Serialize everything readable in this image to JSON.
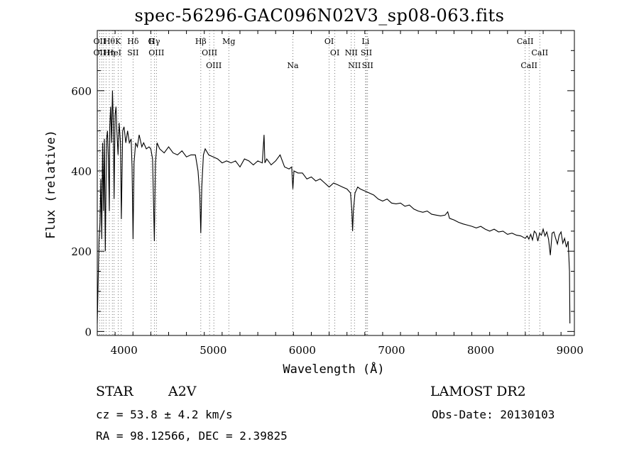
{
  "chart_data": {
    "type": "line",
    "title": "spec-56296-GAC096N02V3_sp08-063.fits",
    "xlabel": "Wavelength (Å)",
    "ylabel": "Flux (relative)",
    "xlim": [
      3700,
      9050
    ],
    "ylim": [
      -10,
      750
    ],
    "x_ticks": [
      4000,
      5000,
      6000,
      7000,
      8000,
      9000
    ],
    "y_ticks": [
      0,
      200,
      400,
      600
    ],
    "grid": false,
    "series": [
      {
        "name": "",
        "points": [
          [
            3700,
            20
          ],
          [
            3710,
            130
          ],
          [
            3720,
            230
          ],
          [
            3730,
            270
          ],
          [
            3740,
            380
          ],
          [
            3750,
            230
          ],
          [
            3760,
            470
          ],
          [
            3770,
            300
          ],
          [
            3780,
            480
          ],
          [
            3790,
            200
          ],
          [
            3798,
            360
          ],
          [
            3805,
            480
          ],
          [
            3815,
            500
          ],
          [
            3825,
            430
          ],
          [
            3835,
            300
          ],
          [
            3840,
            510
          ],
          [
            3850,
            560
          ],
          [
            3860,
            470
          ],
          [
            3870,
            600
          ],
          [
            3880,
            520
          ],
          [
            3889,
            330
          ],
          [
            3900,
            540
          ],
          [
            3910,
            560
          ],
          [
            3920,
            500
          ],
          [
            3933,
            440
          ],
          [
            3945,
            520
          ],
          [
            3960,
            470
          ],
          [
            3970,
            280
          ],
          [
            3985,
            500
          ],
          [
            4000,
            510
          ],
          [
            4020,
            470
          ],
          [
            4040,
            500
          ],
          [
            4060,
            470
          ],
          [
            4080,
            480
          ],
          [
            4090,
            410
          ],
          [
            4101,
            230
          ],
          [
            4112,
            420
          ],
          [
            4130,
            470
          ],
          [
            4150,
            460
          ],
          [
            4170,
            490
          ],
          [
            4200,
            460
          ],
          [
            4220,
            470
          ],
          [
            4250,
            455
          ],
          [
            4280,
            460
          ],
          [
            4300,
            455
          ],
          [
            4320,
            430
          ],
          [
            4340,
            225
          ],
          [
            4352,
            420
          ],
          [
            4370,
            470
          ],
          [
            4400,
            455
          ],
          [
            4450,
            445
          ],
          [
            4500,
            460
          ],
          [
            4550,
            445
          ],
          [
            4600,
            440
          ],
          [
            4650,
            450
          ],
          [
            4700,
            435
          ],
          [
            4750,
            440
          ],
          [
            4800,
            440
          ],
          [
            4830,
            400
          ],
          [
            4850,
            340
          ],
          [
            4861,
            245
          ],
          [
            4872,
            360
          ],
          [
            4890,
            440
          ],
          [
            4910,
            455
          ],
          [
            4950,
            440
          ],
          [
            5000,
            435
          ],
          [
            5050,
            430
          ],
          [
            5100,
            420
          ],
          [
            5150,
            425
          ],
          [
            5200,
            420
          ],
          [
            5250,
            425
          ],
          [
            5300,
            410
          ],
          [
            5350,
            430
          ],
          [
            5400,
            425
          ],
          [
            5450,
            415
          ],
          [
            5500,
            425
          ],
          [
            5550,
            420
          ],
          [
            5570,
            490
          ],
          [
            5580,
            420
          ],
          [
            5600,
            430
          ],
          [
            5650,
            415
          ],
          [
            5700,
            425
          ],
          [
            5750,
            440
          ],
          [
            5800,
            410
          ],
          [
            5850,
            405
          ],
          [
            5880,
            410
          ],
          [
            5893,
            355
          ],
          [
            5905,
            400
          ],
          [
            5950,
            395
          ],
          [
            6000,
            395
          ],
          [
            6050,
            380
          ],
          [
            6100,
            385
          ],
          [
            6150,
            375
          ],
          [
            6200,
            380
          ],
          [
            6250,
            370
          ],
          [
            6300,
            360
          ],
          [
            6350,
            370
          ],
          [
            6400,
            365
          ],
          [
            6450,
            360
          ],
          [
            6500,
            355
          ],
          [
            6540,
            345
          ],
          [
            6555,
            300
          ],
          [
            6563,
            250
          ],
          [
            6572,
            300
          ],
          [
            6590,
            345
          ],
          [
            6620,
            360
          ],
          [
            6650,
            355
          ],
          [
            6700,
            350
          ],
          [
            6750,
            345
          ],
          [
            6800,
            340
          ],
          [
            6850,
            330
          ],
          [
            6900,
            325
          ],
          [
            6950,
            330
          ],
          [
            7000,
            320
          ],
          [
            7050,
            318
          ],
          [
            7100,
            320
          ],
          [
            7150,
            312
          ],
          [
            7200,
            315
          ],
          [
            7250,
            305
          ],
          [
            7300,
            300
          ],
          [
            7350,
            297
          ],
          [
            7400,
            300
          ],
          [
            7450,
            292
          ],
          [
            7500,
            290
          ],
          [
            7550,
            288
          ],
          [
            7600,
            290
          ],
          [
            7630,
            298
          ],
          [
            7650,
            282
          ],
          [
            7700,
            278
          ],
          [
            7750,
            272
          ],
          [
            7800,
            268
          ],
          [
            7850,
            265
          ],
          [
            7900,
            262
          ],
          [
            7950,
            258
          ],
          [
            8000,
            262
          ],
          [
            8050,
            255
          ],
          [
            8100,
            250
          ],
          [
            8150,
            255
          ],
          [
            8200,
            248
          ],
          [
            8250,
            250
          ],
          [
            8300,
            242
          ],
          [
            8350,
            245
          ],
          [
            8400,
            240
          ],
          [
            8450,
            238
          ],
          [
            8500,
            232
          ],
          [
            8520,
            238
          ],
          [
            8540,
            230
          ],
          [
            8560,
            242
          ],
          [
            8580,
            228
          ],
          [
            8600,
            250
          ],
          [
            8620,
            245
          ],
          [
            8640,
            225
          ],
          [
            8660,
            245
          ],
          [
            8680,
            240
          ],
          [
            8700,
            255
          ],
          [
            8720,
            238
          ],
          [
            8740,
            248
          ],
          [
            8760,
            230
          ],
          [
            8780,
            190
          ],
          [
            8800,
            245
          ],
          [
            8820,
            248
          ],
          [
            8840,
            232
          ],
          [
            8860,
            218
          ],
          [
            8880,
            240
          ],
          [
            8900,
            248
          ],
          [
            8920,
            220
          ],
          [
            8940,
            232
          ],
          [
            8960,
            210
          ],
          [
            8980,
            225
          ],
          [
            8995,
            150
          ],
          [
            9000,
            20
          ]
        ]
      }
    ],
    "lines": [
      {
        "x": 3727,
        "labels": [
          "OII",
          "OII"
        ]
      },
      {
        "x": 3750,
        "labels": []
      },
      {
        "x": 3771,
        "labels": []
      },
      {
        "x": 3798,
        "labels": []
      },
      {
        "x": 3835,
        "labels": [
          "Hθ",
          "Hη"
        ]
      },
      {
        "x": 3869,
        "labels": []
      },
      {
        "x": 3889,
        "labels": [
          "HeI"
        ]
      },
      {
        "x": 3934,
        "labels": [
          "K"
        ]
      },
      {
        "x": 3969,
        "labels": []
      },
      {
        "x": 4101,
        "labels": [
          "Hδ",
          "SII"
        ]
      },
      {
        "x": 4304,
        "labels": [
          "G"
        ]
      },
      {
        "x": 4340,
        "labels": [
          "Hγ"
        ]
      },
      {
        "x": 4363,
        "labels": [
          "OIII"
        ]
      },
      {
        "x": 4861,
        "labels": [
          "Hβ"
        ]
      },
      {
        "x": 4959,
        "labels": [
          "OIII"
        ]
      },
      {
        "x": 5007,
        "labels": [
          "OIII"
        ]
      },
      {
        "x": 5175,
        "labels": [
          "Mg"
        ]
      },
      {
        "x": 5893,
        "labels": [
          "Na"
        ]
      },
      {
        "x": 6300,
        "labels": [
          "OI"
        ]
      },
      {
        "x": 6364,
        "labels": [
          "OI"
        ]
      },
      {
        "x": 6548,
        "labels": [
          "NII"
        ]
      },
      {
        "x": 6584,
        "labels": [
          "NII"
        ]
      },
      {
        "x": 6708,
        "labels": [
          "Li"
        ]
      },
      {
        "x": 6717,
        "labels": [
          "SII"
        ]
      },
      {
        "x": 6731,
        "labels": [
          "SII"
        ]
      },
      {
        "x": 8498,
        "labels": [
          "CaII"
        ]
      },
      {
        "x": 8542,
        "labels": [
          "CaII"
        ]
      },
      {
        "x": 8662,
        "labels": [
          "CaII"
        ]
      }
    ]
  },
  "info": {
    "object_class": "STAR",
    "subclass": "A2V",
    "survey": "LAMOST DR2",
    "redshift": "cz = 53.8 ± 4.2 km/s",
    "obs_date": "Obs-Date: 20130103",
    "coords": "RA =  98.12566, DEC =   2.39825"
  }
}
